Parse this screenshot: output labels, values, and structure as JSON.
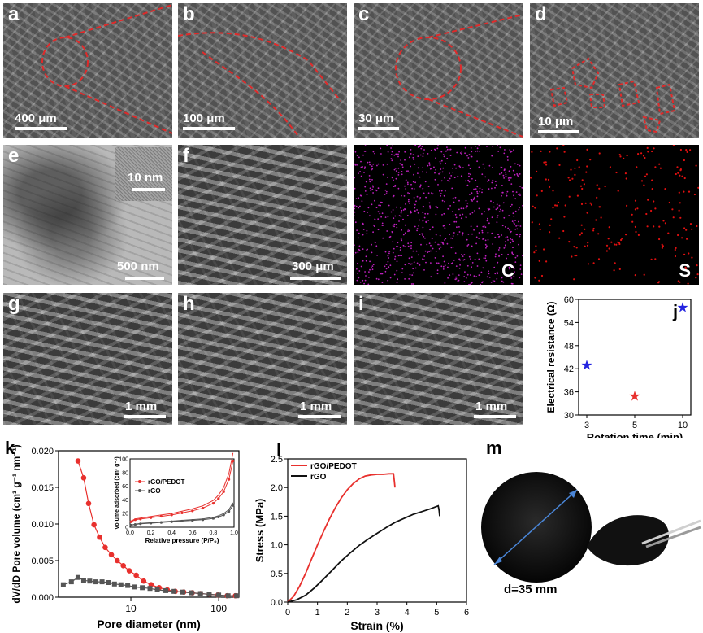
{
  "panels": {
    "a": {
      "label": "a",
      "scale": "400 μm"
    },
    "b": {
      "label": "b",
      "scale": "100 μm"
    },
    "c": {
      "label": "c",
      "scale": "30 μm"
    },
    "d": {
      "label": "d",
      "scale": "10 μm"
    },
    "e": {
      "label": "e",
      "scale": "500 nm",
      "inset_scale": "10 nm"
    },
    "f": {
      "label": "f",
      "scale": "300 μm"
    },
    "eds_c": {
      "label": "C"
    },
    "eds_s": {
      "label": "S"
    },
    "g": {
      "label": "g",
      "scale": "1 mm"
    },
    "h": {
      "label": "h",
      "scale": "1 mm"
    },
    "i": {
      "label": "i",
      "scale": "1 mm"
    },
    "j": {
      "label": "j"
    },
    "k": {
      "label": "k"
    },
    "l": {
      "label": "l"
    },
    "m": {
      "label": "m",
      "diameter_text": "d=35 mm"
    }
  },
  "colors": {
    "red": "#e8302d",
    "black": "#222222",
    "gray": "#555555",
    "blue": "#2323e0",
    "eds_c": "#c020c0",
    "eds_s": "#e01010"
  },
  "chart_data": [
    {
      "panel": "j",
      "type": "scatter",
      "xlabel": "Rotation time (min)",
      "ylabel": "Electrical resistance (Ω)",
      "categories": [
        "3",
        "5",
        "10"
      ],
      "points": [
        {
          "x": "3",
          "y": 43,
          "color": "#2323e0"
        },
        {
          "x": "5",
          "y": 35,
          "color": "#e8302d"
        },
        {
          "x": "10",
          "y": 58,
          "color": "#2323e0"
        }
      ],
      "ylim": [
        30,
        60
      ],
      "yticks": [
        30,
        36,
        42,
        48,
        54,
        60
      ]
    },
    {
      "panel": "k",
      "type": "scatter",
      "xlabel": "Pore diameter (nm)",
      "ylabel": "dV/dD Pore volume (cm³ g⁻¹ nm⁻¹)",
      "xscale": "log",
      "xlim": [
        1.5,
        170
      ],
      "ylim": [
        0,
        0.02
      ],
      "xticks": [
        "10",
        "100"
      ],
      "yticks": [
        "0.000",
        "0.005",
        "0.010",
        "0.015",
        "0.020"
      ],
      "series": [
        {
          "name": "rGO/PEDOT",
          "color": "#e8302d",
          "marker": "circle",
          "x": [
            2.5,
            2.9,
            3.3,
            3.8,
            4.4,
            5.1,
            6,
            7,
            8.2,
            9.6,
            11.5,
            14,
            17,
            21,
            26,
            32,
            40,
            50,
            62,
            78,
            98,
            125,
            155
          ],
          "y": [
            0.0186,
            0.0163,
            0.0128,
            0.0099,
            0.0082,
            0.0068,
            0.0058,
            0.005,
            0.0043,
            0.0036,
            0.003,
            0.0022,
            0.0017,
            0.0013,
            0.001,
            0.0008,
            0.0007,
            0.0006,
            0.0005,
            0.0004,
            0.0003,
            0.0002,
            0.0002
          ]
        },
        {
          "name": "rGO",
          "color": "#555555",
          "marker": "square",
          "x": [
            1.7,
            2.1,
            2.5,
            2.9,
            3.4,
            4,
            4.7,
            5.5,
            6.5,
            7.7,
            9.2,
            11,
            13.5,
            16.5,
            20,
            25,
            31,
            39,
            49,
            62,
            78,
            100,
            128,
            160
          ],
          "y": [
            0.0017,
            0.0021,
            0.0027,
            0.0023,
            0.0022,
            0.0021,
            0.0021,
            0.002,
            0.0018,
            0.0017,
            0.0016,
            0.0014,
            0.0013,
            0.0012,
            0.001,
            0.0009,
            0.0008,
            0.0007,
            0.0006,
            0.0005,
            0.0004,
            0.0003,
            0.0002,
            0.0002
          ]
        }
      ],
      "inset": {
        "type": "line",
        "xlabel": "Relative pressure (P/P₀)",
        "ylabel": "Volume adsorbed (cm³ g⁻¹)",
        "xlim": [
          0,
          1
        ],
        "ylim": [
          0,
          100
        ],
        "xticks": [
          "0.0",
          "0.2",
          "0.4",
          "0.6",
          "0.8",
          "1.0"
        ],
        "yticks": [
          "0",
          "20",
          "40",
          "60",
          "80",
          "100"
        ],
        "legend": [
          "rGO/PEDOT",
          "rGO"
        ],
        "series": [
          {
            "name": "rGO/PEDOT",
            "color": "#e8302d",
            "x": [
              0.01,
              0.05,
              0.1,
              0.2,
              0.3,
              0.4,
              0.5,
              0.6,
              0.7,
              0.8,
              0.85,
              0.9,
              0.95,
              0.99
            ],
            "y": [
              8,
              11,
              12,
              14,
              16,
              18,
              21,
              24,
              28,
              35,
              42,
              52,
              70,
              97
            ]
          },
          {
            "name": "rGO",
            "color": "#555555",
            "x": [
              0.01,
              0.05,
              0.1,
              0.2,
              0.3,
              0.4,
              0.5,
              0.6,
              0.7,
              0.8,
              0.85,
              0.9,
              0.95,
              0.99
            ],
            "y": [
              3,
              4,
              5,
              6,
              7,
              8,
              9,
              10,
              11,
              13,
              15,
              18,
              23,
              32
            ]
          }
        ]
      }
    },
    {
      "panel": "l",
      "type": "line",
      "xlabel": "Strain (%)",
      "ylabel": "Stress (MPa)",
      "xlim": [
        0,
        6
      ],
      "ylim": [
        0,
        2.5
      ],
      "xticks": [
        "0",
        "1",
        "2",
        "3",
        "4",
        "5",
        "6"
      ],
      "yticks": [
        "0.0",
        "0.5",
        "1.0",
        "1.5",
        "2.0",
        "2.5"
      ],
      "legend": [
        "rGO/PEDOT",
        "rGO"
      ],
      "series": [
        {
          "name": "rGO/PEDOT",
          "color": "#e8302d",
          "x": [
            0,
            0.2,
            0.4,
            0.6,
            0.8,
            1.0,
            1.2,
            1.4,
            1.6,
            1.8,
            2.0,
            2.2,
            2.4,
            2.6,
            2.8,
            3.0,
            3.2,
            3.4,
            3.55,
            3.58,
            3.6
          ],
          "y": [
            0,
            0.1,
            0.28,
            0.5,
            0.75,
            1.0,
            1.23,
            1.45,
            1.65,
            1.82,
            1.96,
            2.07,
            2.15,
            2.2,
            2.22,
            2.23,
            2.23,
            2.24,
            2.24,
            2.1,
            2.0
          ]
        },
        {
          "name": "rGO",
          "color": "#111111",
          "x": [
            0,
            0.3,
            0.6,
            0.9,
            1.2,
            1.5,
            1.8,
            2.1,
            2.4,
            2.7,
            3.0,
            3.3,
            3.6,
            3.9,
            4.2,
            4.5,
            4.8,
            5.05,
            5.08,
            5.1
          ],
          "y": [
            0,
            0.04,
            0.12,
            0.25,
            0.4,
            0.56,
            0.72,
            0.86,
            0.99,
            1.1,
            1.2,
            1.3,
            1.39,
            1.46,
            1.53,
            1.58,
            1.63,
            1.68,
            1.6,
            1.5
          ]
        }
      ]
    }
  ]
}
